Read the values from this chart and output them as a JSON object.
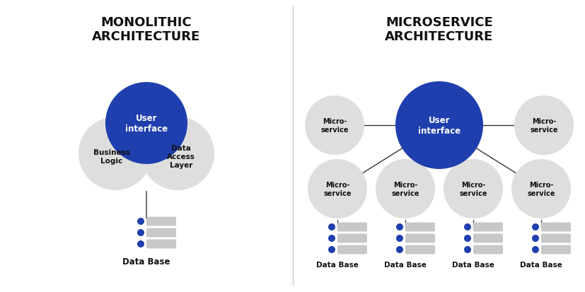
{
  "bg_color": "#ffffff",
  "blue_color": "#1e3fad",
  "gray_circle_color": "#dedede",
  "gray_bar_color": "#c8c8c8",
  "text_color_dark": "#111111",
  "text_color_white": "#ffffff",
  "left_title": "MONOLITHIC\nARCHITECTURE",
  "right_title": "MICROSERVICE\nARCHITECTURE",
  "ui_label": "User\ninterface",
  "business_label": "Business\nLogic",
  "data_access_label": "Data\nAccess\nLayer",
  "microservice_label": "Micro-\nservice",
  "database_label": "Data Base",
  "figw": 8.28,
  "figh": 4.14,
  "dpi": 100
}
